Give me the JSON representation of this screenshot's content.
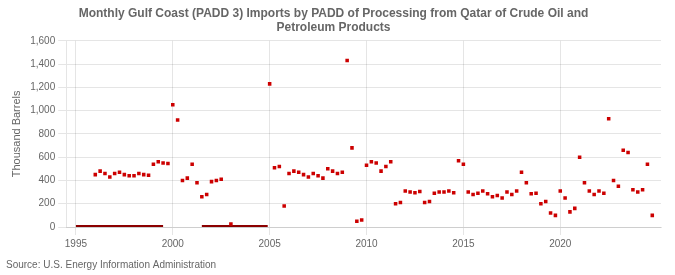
{
  "chart_data": {
    "type": "scatter",
    "title": "Monthly Gulf Coast (PADD 3) Imports by PADD of Processing from Qatar of Crude Oil and\nPetroleum Products",
    "y_label": "Thousand Barrels",
    "annotations": [
      "Source: U.S. Energy Information Administration"
    ],
    "xlim": [
      1994.5,
      2025.2
    ],
    "xticks": [
      1995,
      2000,
      2005,
      2010,
      2015,
      2020
    ],
    "ylim": [
      0,
      1600
    ],
    "yticks": [
      0,
      200,
      400,
      600,
      800,
      {
        "value": 1000,
        "label": "1,000"
      },
      {
        "value": 1200,
        "label": "1,200"
      },
      {
        "value": 1400,
        "label": "1,400"
      },
      {
        "value": 1600,
        "label": "1,600"
      }
    ],
    "grid": true,
    "series": [
      {
        "type": "line",
        "color": "#8b0000",
        "x": [
          1995.0,
          1999.5
        ],
        "values": [
          0,
          0
        ]
      },
      {
        "type": "line",
        "color": "#8b0000",
        "x": [
          2001.5,
          2004.9
        ],
        "values": [
          0,
          0
        ]
      },
      {
        "type": "scatter",
        "color": "#cc0000",
        "marker": "square",
        "x": [
          1996.0,
          1996.25,
          1996.5,
          1996.75,
          1997.0,
          1997.25,
          1997.5,
          1997.75,
          1998.0,
          1998.25,
          1998.5,
          1998.75,
          1999.0,
          1999.25,
          1999.5,
          1999.75,
          2000.0,
          2000.25,
          2000.5,
          2000.75,
          2001.0,
          2001.25,
          2001.5,
          2001.75,
          2002.0,
          2002.25,
          2002.5,
          2003.0,
          2005.0,
          2005.25,
          2005.5,
          2005.75,
          2006.0,
          2006.25,
          2006.5,
          2006.75,
          2007.0,
          2007.25,
          2007.5,
          2007.75,
          2008.0,
          2008.25,
          2008.5,
          2008.75,
          2009.0,
          2009.25,
          2009.5,
          2009.75,
          2010.0,
          2010.25,
          2010.5,
          2010.75,
          2011.0,
          2011.25,
          2011.5,
          2011.75,
          2012.0,
          2012.25,
          2012.5,
          2012.75,
          2013.0,
          2013.25,
          2013.5,
          2013.75,
          2014.0,
          2014.25,
          2014.5,
          2014.75,
          2015.0,
          2015.25,
          2015.5,
          2015.75,
          2016.0,
          2016.25,
          2016.5,
          2016.75,
          2017.0,
          2017.25,
          2017.5,
          2017.75,
          2018.0,
          2018.25,
          2018.5,
          2018.75,
          2019.0,
          2019.25,
          2019.5,
          2019.75,
          2020.0,
          2020.25,
          2020.5,
          2020.75,
          2021.0,
          2021.25,
          2021.5,
          2021.75,
          2022.0,
          2022.25,
          2022.5,
          2022.75,
          2023.0,
          2023.25,
          2023.5,
          2023.75,
          2024.0,
          2024.25,
          2024.5,
          2024.75
        ],
        "values": [
          450,
          480,
          460,
          430,
          460,
          470,
          450,
          440,
          440,
          460,
          450,
          445,
          540,
          560,
          550,
          545,
          1050,
          920,
          400,
          420,
          540,
          380,
          260,
          280,
          390,
          400,
          410,
          25,
          1230,
          510,
          520,
          180,
          460,
          480,
          470,
          450,
          430,
          460,
          440,
          420,
          500,
          480,
          460,
          470,
          1430,
          680,
          50,
          60,
          530,
          560,
          550,
          480,
          520,
          560,
          200,
          210,
          310,
          300,
          295,
          305,
          210,
          220,
          290,
          300,
          300,
          310,
          295,
          570,
          540,
          300,
          280,
          290,
          310,
          285,
          260,
          270,
          250,
          300,
          280,
          310,
          470,
          380,
          285,
          290,
          200,
          220,
          120,
          100,
          310,
          250,
          130,
          160,
          600,
          380,
          310,
          280,
          310,
          290,
          930,
          400,
          350,
          660,
          640,
          320,
          300,
          320,
          540,
          100
        ]
      }
    ]
  }
}
